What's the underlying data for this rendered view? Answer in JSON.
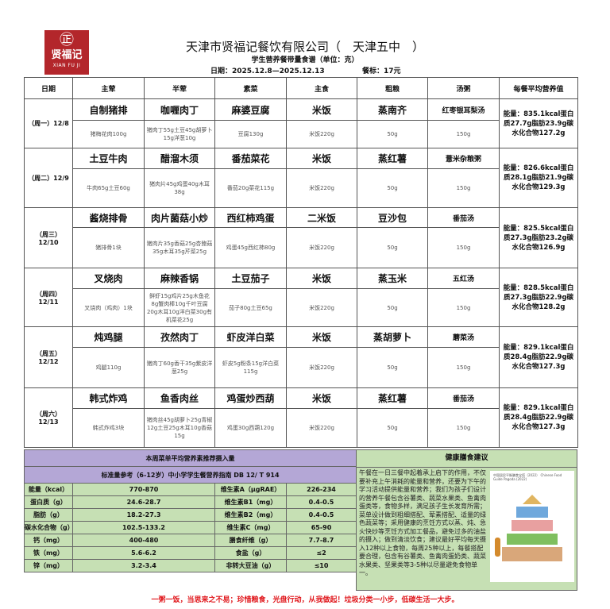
{
  "logo": {
    "symbol": "㊣",
    "cn": "贤福记",
    "en": "XIAN FU JI"
  },
  "header": {
    "title": "天津市贤福记餐饮有限公司（　天津五中　）",
    "subtitle": "学生营养餐带量食谱（单位：克）",
    "date_range": "日期：2025.12.8—2025.12.13",
    "price": "餐标：17元"
  },
  "columns": [
    "日期",
    "主荤",
    "半荤",
    "素菜",
    "主食",
    "粗粮",
    "汤粥",
    "每餐平均营养值"
  ],
  "days": [
    {
      "date": "（周一）12/8",
      "names": [
        "自制猪排",
        "咖喱肉丁",
        "麻婆豆腐",
        "米饭",
        "蒸南齐",
        "红枣银耳梨汤"
      ],
      "amounts": [
        "猪梅花肉100g",
        "猪肉丁55g土豆45g胡萝卜15g洋葱10g",
        "豆腐130g",
        "米饭220g",
        "50g",
        "150g"
      ],
      "nutrition": "能量：835.1kcal蛋白质27.7g脂肪23.9g碳水化合物127.2g"
    },
    {
      "date": "（周二）12/9",
      "names": [
        "土豆牛肉",
        "醋溜木须",
        "番茄菜花",
        "米饭",
        "蒸红薯",
        "薏米杂粮粥"
      ],
      "amounts": [
        "牛肉65g土豆60g",
        "猪肉片45g鸡蛋40g木耳38g",
        "番茄20g菜花115g",
        "米饭220g",
        "50g",
        "150g"
      ],
      "nutrition": "能量：826.6kcal蛋白质28.1g脂肪21.9g碳水化合物129.3g"
    },
    {
      "date": "（周三）12/10",
      "names": [
        "酱烧排骨",
        "肉片菌菇小炒",
        "西红柿鸡蛋",
        "二米饭",
        "豆沙包",
        "番茄汤"
      ],
      "amounts": [
        "猪排骨1块",
        "猪肉片35g香菇25g杏鲍菇35g木耳35g芹菜25g",
        "鸡蛋45g西红柿80g",
        "米饭220g",
        "50g",
        "150g"
      ],
      "nutrition": "能量：825.5kcal蛋白质27.3g脂肪23.2g碳水化合物126.9g"
    },
    {
      "date": "（周四）12/11",
      "names": [
        "叉烧肉",
        "麻辣香锅",
        "土豆茄子",
        "米饭",
        "蒸玉米",
        "五红汤"
      ],
      "amounts": [
        "叉烧肉（鸡肉）1块",
        "鲜虾15g鸡片25g木鱼花8g蟹肉棒10g千叶豆腐20g木耳10g洋白菜30g有机菜花25g",
        "茄子80g土豆65g",
        "米饭220g",
        "50g",
        "150g"
      ],
      "nutrition": "能量：828.5kcal蛋白质27.3g脂肪22.9g碳水化合物128.2g"
    },
    {
      "date": "（周五）12/12",
      "names": [
        "炖鸡腿",
        "孜然肉丁",
        "虾皮洋白菜",
        "米饭",
        "蒸胡萝卜",
        "蘑菜汤"
      ],
      "amounts": [
        "鸡腿110g",
        "猪肉丁60g香干35g紫皮洋葱25g",
        "虾皮5g粉条15g洋白菜115g",
        "米饭220g",
        "50g",
        "150g"
      ],
      "nutrition": "能量：829.1kcal蛋白质28.4g脂肪22.9g碳水化合物127.3g"
    },
    {
      "date": "（周六）12/13",
      "names": [
        "韩式炸鸡",
        "鱼香肉丝",
        "鸡蛋炒西葫",
        "米饭",
        "蒸红薯",
        "番茄汤"
      ],
      "amounts": [
        "韩式炸鸡3块",
        "猪肉丝45g胡萝卜25g青椒12g土豆25g木耳10g香菇15g",
        "鸡蛋30g西葫120g",
        "米饭220g",
        "50g",
        "150g"
      ],
      "nutrition": "能量：829.1kcal蛋白质28.4g脂肪22.9g碳水化合物127.3g"
    }
  ],
  "standards": {
    "title": "本周菜单平均营养素推荐摄入量",
    "reference": "标准量参考（6-12岁）中小学学生餐营养指南  DB 12/ T 914",
    "rows": [
      [
        "能量（kcal）",
        "770-870",
        "维生素A（μgRAE）",
        "226-234"
      ],
      [
        "蛋白质（g）",
        "24.6-28.7",
        "维生素B1（mg）",
        "0.4-0.5"
      ],
      [
        "脂肪（g）",
        "18.2-27.3",
        "维生素B2（mg）",
        "0.4-0.5"
      ],
      [
        "碳水化合物（g）",
        "102.5-133.2",
        "维生素C（mg）",
        "65-90"
      ],
      [
        "钙（mg）",
        "400-480",
        "膳食纤维（g）",
        "7.7-8.7"
      ],
      [
        "铁（mg）",
        "5.6-6.2",
        "食盐（g）",
        "≤2"
      ],
      [
        "锌（mg）",
        "3.2-3.4",
        "非转大豆油（g）",
        "≤10"
      ]
    ]
  },
  "advice": {
    "title": "健康膳食建议",
    "text": "午餐在一日三餐中起着承上启下的作用，不仅要补充上午消耗的能量和营养，还要为下午的学习活动提供能量和营养；我们为孩子们设计的营养午餐包含谷薯类、蔬菜水果类、鱼禽肉蛋类等，食物多样，满足孩子生长发育所需；菜单设计做到粗细搭配、荤素搭配、适量的绿色蔬菜等；采用健康的烹饪方式以蒸、炖、急火快炒等烹饪方式加工餐品，避免过多的油盐的摄入；做到清淡饮食；建议最好平均每天摄入12种以上食物，每周25种以上，每餐搭配要合理，包含有谷薯类、鱼禽肉蛋奶类、蔬菜水果类、坚果类等3-5种以尽量避免食物单一。",
    "image_caption": "中国居民平衡膳食宝塔（2022） Chinese Food Guide Pagoda (2022)"
  },
  "slogan": "一粥一饭，当思来之不易；珍惜粮食，光盘行动，从我做起！垃圾分类一小步，低碳生活一大步。",
  "colors": {
    "logo_red": "#b3262b",
    "purple": "#b4a7d6",
    "green": "#c6e0b4",
    "slogan_red": "#e0161b"
  }
}
